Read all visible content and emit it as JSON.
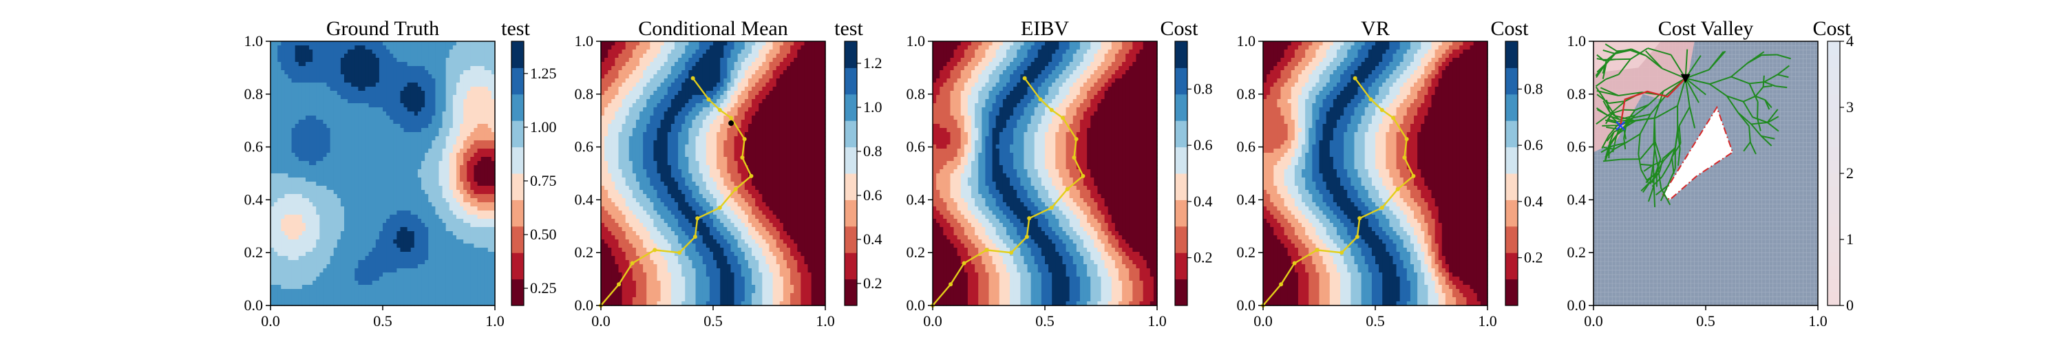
{
  "chart_data": [
    {
      "type": "heatmap",
      "title": "Ground Truth",
      "xlim": [
        0,
        1
      ],
      "ylim": [
        0,
        1
      ],
      "xticks": [
        "0.0",
        "0.5",
        "1.0"
      ],
      "yticks": [
        "0.0",
        "0.2",
        "0.4",
        "0.6",
        "0.8",
        "1.0"
      ],
      "colorbar": {
        "label": "test",
        "ticks": [
          "0.25",
          "0.50",
          "0.75",
          "1.00",
          "1.25"
        ],
        "range": [
          0.17,
          1.4
        ]
      },
      "colormap": "RdBu",
      "field": {
        "base": 1.05,
        "blobs": [
          {
            "x": 0.96,
            "y": 0.5,
            "a": -0.85,
            "s": 0.11
          },
          {
            "x": 0.92,
            "y": 0.78,
            "a": -0.3,
            "s": 0.1
          },
          {
            "x": 0.1,
            "y": 0.3,
            "a": -0.3,
            "s": 0.1
          },
          {
            "x": 0.4,
            "y": 0.9,
            "a": 0.33,
            "s": 0.09
          },
          {
            "x": 0.14,
            "y": 0.95,
            "a": 0.25,
            "s": 0.08
          },
          {
            "x": 0.65,
            "y": 0.78,
            "a": 0.28,
            "s": 0.09
          },
          {
            "x": 0.6,
            "y": 0.25,
            "a": 0.26,
            "s": 0.08
          },
          {
            "x": 0.18,
            "y": 0.62,
            "a": 0.2,
            "s": 0.08
          },
          {
            "x": 0.42,
            "y": 0.12,
            "a": 0.12,
            "s": 0.08
          },
          {
            "x": 0.82,
            "y": 0.1,
            "a": 0.1,
            "s": 0.08
          }
        ]
      }
    },
    {
      "type": "heatmap",
      "title": "Conditional Mean",
      "xlim": [
        0,
        1
      ],
      "ylim": [
        0,
        1
      ],
      "xticks": [
        "0.0",
        "0.5",
        "1.0"
      ],
      "yticks": [
        "0.0",
        "0.2",
        "0.4",
        "0.6",
        "0.8",
        "1.0"
      ],
      "colorbar": {
        "label": "test",
        "ticks": [
          "0.2",
          "0.4",
          "0.6",
          "0.8",
          "1.0",
          "1.2"
        ],
        "range": [
          0.1,
          1.3
        ]
      },
      "colormap": "RdBu",
      "field": {
        "kind": "band",
        "center": 0.42,
        "amp": 0.15,
        "width": 0.22,
        "low": 0.15,
        "high": 1.25
      },
      "path": {
        "x": [
          0.0,
          0.08,
          0.14,
          0.24,
          0.35,
          0.42,
          0.43,
          0.53,
          0.6,
          0.67,
          0.63,
          0.64,
          0.58,
          0.53,
          0.48,
          0.41
        ],
        "y": [
          0.0,
          0.08,
          0.16,
          0.21,
          0.2,
          0.26,
          0.33,
          0.37,
          0.44,
          0.49,
          0.56,
          0.63,
          0.71,
          0.74,
          0.78,
          0.86
        ]
      },
      "end_marker": {
        "x": 0.58,
        "y": 0.69
      }
    },
    {
      "type": "heatmap",
      "title": "EIBV",
      "xlim": [
        0,
        1
      ],
      "ylim": [
        0,
        1
      ],
      "xticks": [
        "0.0",
        "0.5",
        "1.0"
      ],
      "yticks": [
        "0.0",
        "0.2",
        "0.4",
        "0.6",
        "0.8",
        "1.0"
      ],
      "colorbar": {
        "label": "Cost",
        "ticks": [
          "0.2",
          "0.4",
          "0.6",
          "0.8"
        ],
        "range": [
          0.03,
          0.97
        ]
      },
      "colormap": "RdBu",
      "field": {
        "kind": "valley",
        "center": 0.42,
        "amp": 0.15,
        "width": 0.1,
        "low": 0.05,
        "high": 0.95,
        "blobs": [
          {
            "x": 0.1,
            "y": 0.62,
            "a": -0.35,
            "s": 0.09
          },
          {
            "x": 0.88,
            "y": 0.7,
            "a": -0.22,
            "s": 0.08
          },
          {
            "x": 0.88,
            "y": 0.3,
            "a": -0.12,
            "s": 0.08
          }
        ]
      },
      "path": {
        "x": [
          0.0,
          0.08,
          0.14,
          0.24,
          0.35,
          0.42,
          0.43,
          0.53,
          0.6,
          0.67,
          0.63,
          0.64,
          0.58,
          0.53,
          0.48,
          0.41
        ],
        "y": [
          0.0,
          0.08,
          0.16,
          0.21,
          0.2,
          0.26,
          0.33,
          0.37,
          0.44,
          0.49,
          0.56,
          0.63,
          0.71,
          0.74,
          0.78,
          0.86
        ]
      }
    },
    {
      "type": "heatmap",
      "title": "VR",
      "xlim": [
        0,
        1
      ],
      "ylim": [
        0,
        1
      ],
      "xticks": [
        "0.0",
        "0.5",
        "1.0"
      ],
      "yticks": [
        "0.0",
        "0.2",
        "0.4",
        "0.6",
        "0.8",
        "1.0"
      ],
      "colorbar": {
        "label": "Cost",
        "ticks": [
          "0.2",
          "0.4",
          "0.6",
          "0.8"
        ],
        "range": [
          0.03,
          0.97
        ]
      },
      "colormap": "RdBu",
      "field": {
        "kind": "valley",
        "center": 0.42,
        "amp": 0.15,
        "width": 0.1,
        "low": 0.05,
        "high": 0.95,
        "blobs": [
          {
            "x": 0.1,
            "y": 0.64,
            "a": -0.3,
            "s": 0.08
          },
          {
            "x": 0.88,
            "y": 0.84,
            "a": -0.28,
            "s": 0.07
          },
          {
            "x": 0.88,
            "y": 0.2,
            "a": -0.4,
            "s": 0.09
          }
        ]
      },
      "path": {
        "x": [
          0.0,
          0.08,
          0.14,
          0.24,
          0.35,
          0.42,
          0.43,
          0.53,
          0.6,
          0.67,
          0.63,
          0.64,
          0.58,
          0.53,
          0.48,
          0.41
        ],
        "y": [
          0.0,
          0.08,
          0.16,
          0.21,
          0.2,
          0.26,
          0.33,
          0.37,
          0.44,
          0.49,
          0.56,
          0.63,
          0.71,
          0.74,
          0.78,
          0.86
        ]
      }
    },
    {
      "type": "heatmap",
      "title": "Cost Valley",
      "xlim": [
        0,
        1
      ],
      "ylim": [
        0,
        1
      ],
      "xticks": [
        "0.0",
        "0.5",
        "1.0"
      ],
      "yticks": [
        "0.0",
        "0.2",
        "0.4",
        "0.6",
        "0.8",
        "1.0"
      ],
      "colorbar": {
        "label": "Cost",
        "ticks": [
          "0",
          "1",
          "2",
          "3",
          "4"
        ],
        "range": [
          0,
          4
        ]
      },
      "colormap": "Blues_from_pink",
      "obstacle": {
        "x": [
          0.31,
          0.55,
          0.62,
          0.46,
          0.34
        ],
        "y": [
          0.42,
          0.75,
          0.58,
          0.49,
          0.4
        ]
      },
      "start": {
        "x": 0.41,
        "y": 0.86
      },
      "target": {
        "x": 0.12,
        "y": 0.68
      },
      "red_path": {
        "x": [
          0.41,
          0.33,
          0.24,
          0.14,
          0.12
        ],
        "y": [
          0.86,
          0.79,
          0.81,
          0.78,
          0.68
        ]
      }
    }
  ]
}
